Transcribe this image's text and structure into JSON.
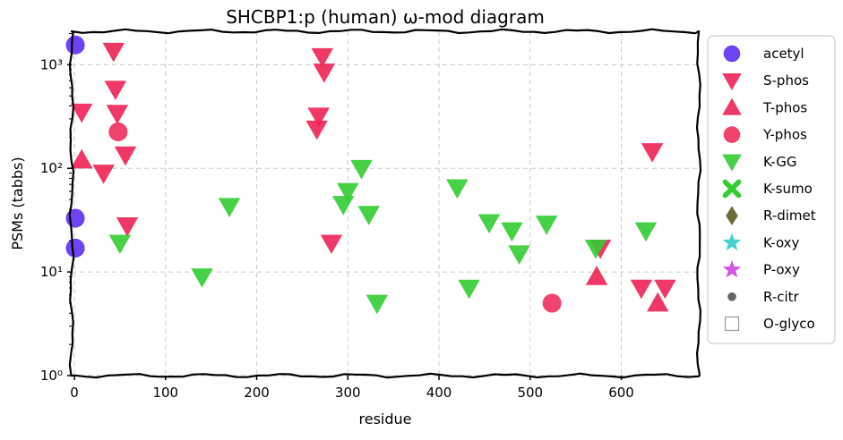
{
  "chart_data": {
    "type": "scatter",
    "title": "SHCBP1:p (human) ω-mod diagram",
    "xlabel": "residue",
    "ylabel": "PSMs (tabbs)",
    "xlim": [
      -3,
      685
    ],
    "ylim": [
      1,
      2100
    ],
    "yscale": "log",
    "x_ticks": [
      0,
      100,
      200,
      300,
      400,
      500,
      600
    ],
    "y_ticks": [
      {
        "value": 1,
        "label": "10⁰"
      },
      {
        "value": 10,
        "label": "10¹"
      },
      {
        "value": 100,
        "label": "10²"
      },
      {
        "value": 1000,
        "label": "10³"
      }
    ],
    "grid": true,
    "legend_position": "outside-right",
    "series": [
      {
        "name": "acetyl",
        "marker": "circle",
        "color": "#5522ee",
        "x": [
          1,
          1,
          1
        ],
        "y": [
          1550,
          33,
          17
        ]
      },
      {
        "name": "S-phos",
        "marker": "triangle-down",
        "color": "#ee2255",
        "x": [
          43,
          8,
          45,
          47,
          56,
          58,
          32,
          272,
          274,
          268,
          266,
          282,
          577,
          634,
          622,
          648
        ],
        "y": [
          1350,
          350,
          580,
          340,
          135,
          28,
          90,
          1200,
          850,
          320,
          240,
          19,
          17,
          145,
          7,
          7
        ]
      },
      {
        "name": "T-phos",
        "marker": "triangle-up",
        "color": "#ee2255",
        "x": [
          8,
          573,
          640
        ],
        "y": [
          120,
          9,
          5
        ]
      },
      {
        "name": "Y-phos",
        "marker": "circle",
        "color": "#ee2255",
        "x": [
          48,
          524
        ],
        "y": [
          225,
          5
        ]
      },
      {
        "name": "K-GG",
        "marker": "triangle-down",
        "color": "#33cc33",
        "x": [
          50,
          140,
          170,
          295,
          300,
          315,
          323,
          332,
          420,
          433,
          455,
          480,
          488,
          518,
          572,
          627
        ],
        "y": [
          19,
          9,
          43,
          45,
          60,
          100,
          36,
          5,
          65,
          7,
          30,
          25,
          15,
          29,
          17,
          25
        ]
      },
      {
        "name": "K-sumo",
        "marker": "x",
        "color": "#33cc33",
        "x": [],
        "y": []
      },
      {
        "name": "R-dimet",
        "marker": "diamond",
        "color": "#6b6b3a",
        "x": [],
        "y": []
      },
      {
        "name": "K-oxy",
        "marker": "star",
        "color": "#33cccc",
        "x": [],
        "y": []
      },
      {
        "name": "P-oxy",
        "marker": "star",
        "color": "#cc44dd",
        "x": [],
        "y": []
      },
      {
        "name": "R-citr",
        "marker": "dot",
        "color": "#666666",
        "x": [],
        "y": []
      },
      {
        "name": "O-glyco",
        "marker": "square-open",
        "color": "#999999",
        "x": [],
        "y": []
      }
    ]
  }
}
